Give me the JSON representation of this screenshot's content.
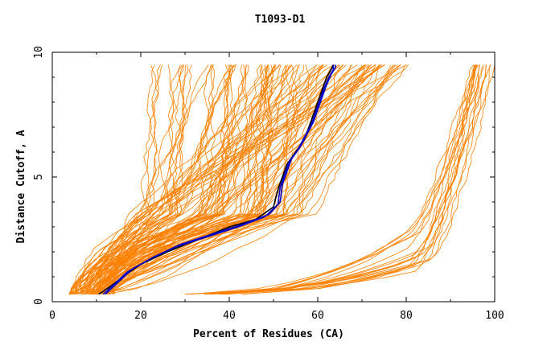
{
  "chart_data": {
    "type": "line",
    "title": "T1093-D1",
    "xlabel": "Percent of Residues (CA)",
    "ylabel": "Distance Cutoff, A",
    "xlim": [
      0,
      100
    ],
    "ylim": [
      0,
      10
    ],
    "x_ticks": [
      0,
      20,
      40,
      60,
      80,
      100
    ],
    "y_ticks": [
      0,
      5,
      10
    ],
    "grid": false,
    "colors": {
      "background_curves": "#ff8000",
      "highlight_black": "#000000",
      "highlight_blue": "#0000c8"
    },
    "highlight_series": [
      {
        "color": "black",
        "x": [
          10.5,
          13,
          16,
          20,
          26,
          33,
          40,
          46,
          50,
          51,
          52,
          53,
          55,
          57,
          58,
          59,
          60,
          61,
          62,
          63,
          63.5,
          63.5
        ],
        "y": [
          0.3,
          0.6,
          1.0,
          1.5,
          2.0,
          2.5,
          3.0,
          3.3,
          3.8,
          4.5,
          5.0,
          5.5,
          6.0,
          6.5,
          7.0,
          7.5,
          8.0,
          8.5,
          9.0,
          9.3,
          9.5,
          9.5
        ]
      },
      {
        "color": "blue",
        "x": [
          11.5,
          14,
          17,
          22,
          28,
          35,
          42,
          48,
          51,
          51.5,
          52.5,
          53.5,
          55.5,
          57,
          58.5,
          59.5,
          60.5,
          61.5,
          62.5,
          63.5,
          63.5
        ],
        "y": [
          0.3,
          0.7,
          1.2,
          1.7,
          2.2,
          2.6,
          3.0,
          3.4,
          3.9,
          4.6,
          5.1,
          5.6,
          6.1,
          6.6,
          7.1,
          7.6,
          8.1,
          8.6,
          9.0,
          9.3,
          9.5
        ]
      },
      {
        "color": "blue",
        "x": [
          12,
          15,
          18,
          23,
          29,
          36,
          43,
          49,
          51.5,
          52,
          53,
          54,
          56,
          57.5,
          59,
          60,
          61,
          62,
          63,
          64,
          64
        ],
        "y": [
          0.3,
          0.8,
          1.3,
          1.8,
          2.3,
          2.7,
          3.1,
          3.5,
          4.0,
          4.7,
          5.2,
          5.7,
          6.2,
          6.7,
          7.2,
          7.7,
          8.2,
          8.7,
          9.1,
          9.4,
          9.5
        ]
      }
    ],
    "background_families": [
      {
        "name_hint": "right-cluster",
        "count": 18,
        "x_start": [
          30,
          44
        ],
        "x_knee": [
          78,
          86
        ],
        "x_end": [
          95,
          100
        ],
        "y_start": 0.3,
        "y_knee": 1.5,
        "y_end": 9.5
      },
      {
        "name_hint": "main-cluster",
        "count": 110,
        "x_start": [
          4,
          14
        ],
        "x_mid": [
          18,
          60
        ],
        "x_end": [
          22,
          82
        ],
        "y_start": 0.3,
        "y_end": 9.5
      }
    ]
  }
}
